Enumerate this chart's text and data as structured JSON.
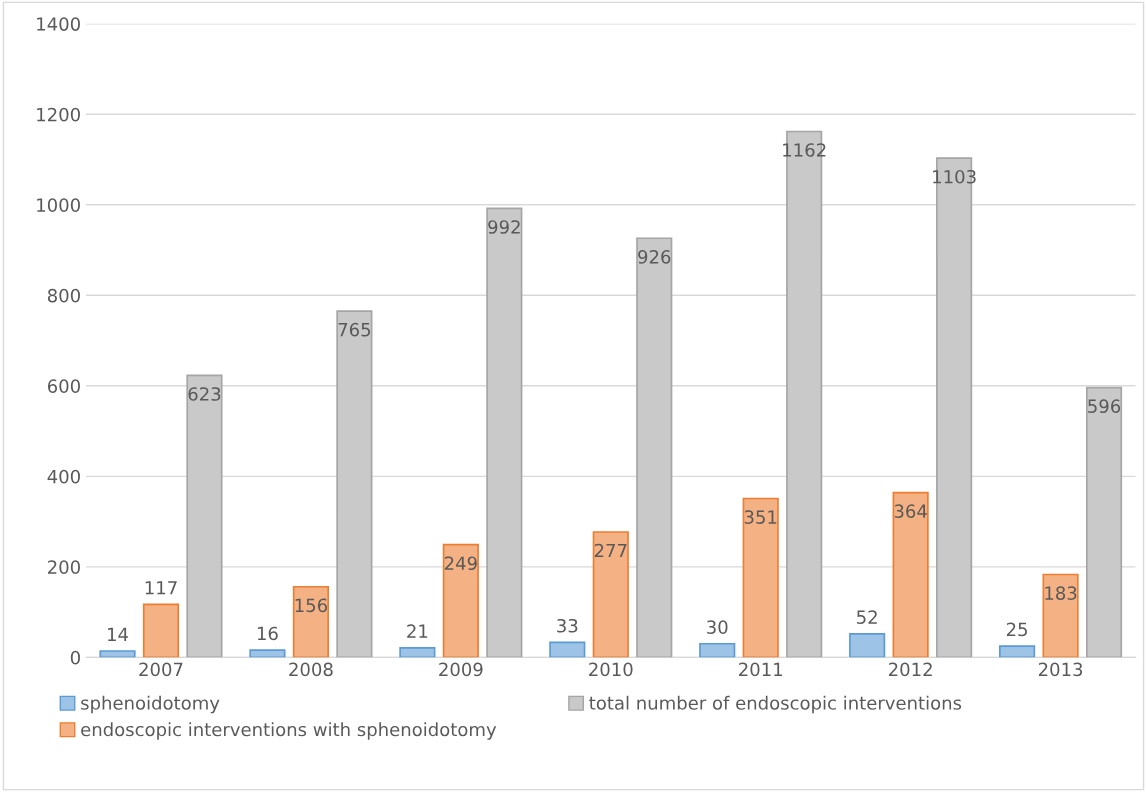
{
  "chart_data": {
    "type": "bar",
    "categories": [
      "2007",
      "2008",
      "2009",
      "2010",
      "2011",
      "2012",
      "2013"
    ],
    "series": [
      {
        "name": "sphenoidotomy",
        "color": "#9dc3e6",
        "values": [
          14,
          16,
          21,
          33,
          30,
          52,
          25
        ]
      },
      {
        "name": "endoscopic interventions with sphenoidotomy",
        "color": "#f4b183",
        "values": [
          117,
          156,
          249,
          277,
          351,
          364,
          183
        ]
      },
      {
        "name": "total number of endoscopic interventions",
        "color": "#c9c9c9",
        "values": [
          623,
          765,
          992,
          926,
          1162,
          1103,
          596
        ]
      }
    ],
    "ylim": [
      0,
      1400
    ],
    "yticks": [
      0,
      200,
      400,
      600,
      800,
      1000,
      1200,
      1400
    ],
    "grid": "y",
    "legend": "bottom",
    "data_labels": true
  }
}
